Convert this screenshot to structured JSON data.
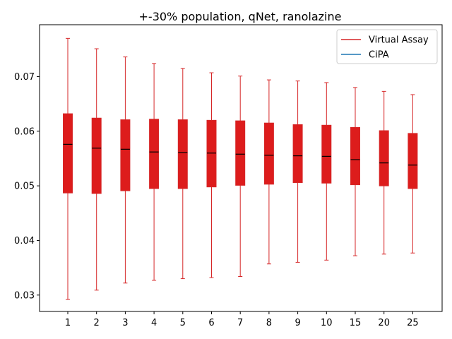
{
  "chart_data": {
    "type": "box",
    "title": "+-30% population, qNet, ranolazine",
    "xlabel": "",
    "ylabel": "",
    "ylim": [
      0.027,
      0.0795
    ],
    "yticks": [
      0.03,
      0.04,
      0.05,
      0.06,
      0.07
    ],
    "ytick_labels": [
      "0.03",
      "0.04",
      "0.05",
      "0.06",
      "0.07"
    ],
    "categories": [
      "1",
      "2",
      "3",
      "4",
      "5",
      "6",
      "7",
      "8",
      "9",
      "10",
      "15",
      "20",
      "25"
    ],
    "grid": false,
    "legend_position": "top-right",
    "series": [
      {
        "name": "Virtual Assay",
        "color": "#d62728",
        "fill": "#dd1c1c",
        "median_color": "#000000",
        "boxes": [
          {
            "min": 0.0292,
            "q1": 0.0487,
            "median": 0.0576,
            "q3": 0.0632,
            "max": 0.077
          },
          {
            "min": 0.0309,
            "q1": 0.0486,
            "median": 0.0569,
            "q3": 0.0624,
            "max": 0.0751
          },
          {
            "min": 0.0322,
            "q1": 0.0491,
            "median": 0.0567,
            "q3": 0.0621,
            "max": 0.0736
          },
          {
            "min": 0.0327,
            "q1": 0.0495,
            "median": 0.0562,
            "q3": 0.0622,
            "max": 0.0724
          },
          {
            "min": 0.033,
            "q1": 0.0495,
            "median": 0.0561,
            "q3": 0.0621,
            "max": 0.0715
          },
          {
            "min": 0.0332,
            "q1": 0.0498,
            "median": 0.056,
            "q3": 0.062,
            "max": 0.0707
          },
          {
            "min": 0.0334,
            "q1": 0.0501,
            "median": 0.0558,
            "q3": 0.0619,
            "max": 0.0701
          },
          {
            "min": 0.0357,
            "q1": 0.0503,
            "median": 0.0556,
            "q3": 0.0615,
            "max": 0.0694
          },
          {
            "min": 0.036,
            "q1": 0.0506,
            "median": 0.0555,
            "q3": 0.0612,
            "max": 0.0692
          },
          {
            "min": 0.0364,
            "q1": 0.0505,
            "median": 0.0554,
            "q3": 0.0611,
            "max": 0.0689
          },
          {
            "min": 0.0372,
            "q1": 0.0502,
            "median": 0.0548,
            "q3": 0.0607,
            "max": 0.068
          },
          {
            "min": 0.0375,
            "q1": 0.05,
            "median": 0.0542,
            "q3": 0.0601,
            "max": 0.0673
          },
          {
            "min": 0.0377,
            "q1": 0.0495,
            "median": 0.0538,
            "q3": 0.0596,
            "max": 0.0667
          }
        ]
      },
      {
        "name": "CiPA",
        "color": "#1f77b4",
        "boxes": []
      }
    ]
  }
}
